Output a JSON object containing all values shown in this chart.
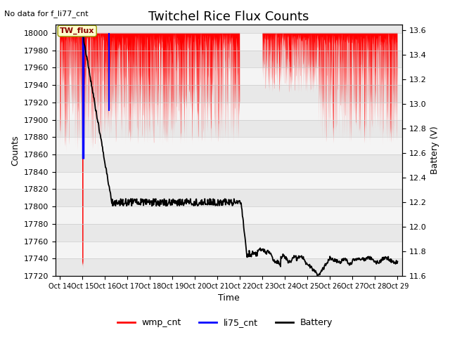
{
  "title": "Twitchel Rice Flux Counts",
  "no_data_text": "No data for f_li77_cnt",
  "annotation_text": "TW_flux",
  "xlabel": "Time",
  "ylabel_left": "Counts",
  "ylabel_right": "Battery (V)",
  "ylim_left": [
    17720,
    18010
  ],
  "ylim_right": [
    11.6,
    13.65
  ],
  "yticks_left": [
    17720,
    17740,
    17760,
    17780,
    17800,
    17820,
    17840,
    17860,
    17880,
    17900,
    17920,
    17940,
    17960,
    17980,
    18000
  ],
  "yticks_right": [
    11.6,
    11.8,
    12.0,
    12.2,
    12.4,
    12.6,
    12.8,
    13.0,
    13.2,
    13.4,
    13.6
  ],
  "x_tick_labels": [
    "Oct 14",
    "Oct 15",
    "Oct 16",
    "Oct 17",
    "Oct 18",
    "Oct 19",
    "Oct 20",
    "Oct 21",
    "Oct 22",
    "Oct 23",
    "Oct 24",
    "Oct 25",
    "Oct 26",
    "Oct 27",
    "Oct 28",
    "Oct 29"
  ],
  "background_color": "#ffffff",
  "stripe_colors": [
    "#e8e8e8",
    "#f4f4f4"
  ],
  "wmp_color": "#ff0000",
  "li75_color": "#0000ff",
  "battery_color": "#000000",
  "title_fontsize": 13,
  "label_fontsize": 9,
  "tick_fontsize": 8,
  "legend_labels": [
    "wmp_cnt",
    "li75_cnt",
    "Battery"
  ],
  "legend_colors": [
    "#ff0000",
    "#0000ff",
    "#000000"
  ]
}
